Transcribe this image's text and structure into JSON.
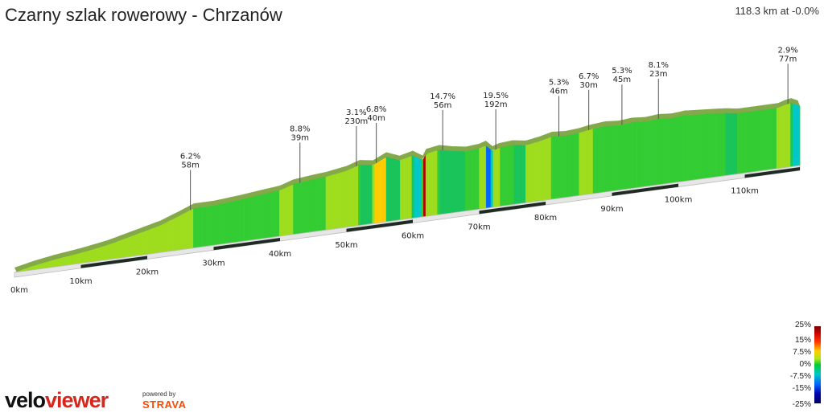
{
  "header": {
    "title": "Czarny szlak rowerowy - Chrzanów",
    "summary": "118.3 km at -0.0%"
  },
  "chart_data": {
    "type": "area",
    "title": "Czarny szlak rowerowy - Chrzanów",
    "total_distance_km": 118.3,
    "x_ticks": [
      "0km",
      "10km",
      "20km",
      "30km",
      "40km",
      "50km",
      "60km",
      "70km",
      "80km",
      "90km",
      "100km",
      "110km"
    ],
    "x_tick_values": [
      0,
      10,
      20,
      30,
      40,
      50,
      60,
      70,
      80,
      90,
      100,
      110
    ],
    "profile": [
      [
        0,
        0
      ],
      [
        3,
        4
      ],
      [
        6,
        7
      ],
      [
        10,
        10
      ],
      [
        14,
        14
      ],
      [
        18,
        20
      ],
      [
        22,
        26
      ],
      [
        25,
        33
      ],
      [
        27,
        38
      ],
      [
        30,
        38
      ],
      [
        34,
        40
      ],
      [
        37,
        42
      ],
      [
        40,
        44
      ],
      [
        42,
        48
      ],
      [
        45,
        50
      ],
      [
        47,
        51
      ],
      [
        50,
        54
      ],
      [
        52,
        58
      ],
      [
        54,
        56
      ],
      [
        56,
        62
      ],
      [
        58,
        57
      ],
      [
        60,
        60
      ],
      [
        61.5,
        54
      ],
      [
        62,
        60
      ],
      [
        64,
        62
      ],
      [
        66,
        59
      ],
      [
        68,
        57
      ],
      [
        70,
        58
      ],
      [
        71,
        60
      ],
      [
        72,
        54
      ],
      [
        73,
        56
      ],
      [
        75,
        57
      ],
      [
        77,
        55
      ],
      [
        79,
        57
      ],
      [
        81,
        60
      ],
      [
        83,
        59
      ],
      [
        85,
        60
      ],
      [
        87,
        62
      ],
      [
        89,
        63
      ],
      [
        91,
        62
      ],
      [
        93,
        63
      ],
      [
        95,
        62
      ],
      [
        97,
        63
      ],
      [
        99,
        62
      ],
      [
        101,
        63
      ],
      [
        103,
        62
      ],
      [
        105,
        61
      ],
      [
        107,
        60
      ],
      [
        109,
        58
      ],
      [
        111,
        58
      ],
      [
        113,
        58
      ],
      [
        115,
        58
      ],
      [
        116,
        60
      ],
      [
        117,
        61
      ],
      [
        118.3,
        57
      ]
    ],
    "gradient_markers": [
      {
        "km": 26.5,
        "grade": "6.2%",
        "length": "58m"
      },
      {
        "km": 43.0,
        "grade": "8.8%",
        "length": "39m"
      },
      {
        "km": 51.5,
        "grade": "3.1%",
        "length": "230m"
      },
      {
        "km": 54.5,
        "grade": "6.8%",
        "length": "40m"
      },
      {
        "km": 64.5,
        "grade": "14.7%",
        "length": "56m"
      },
      {
        "km": 72.5,
        "grade": "19.5%",
        "length": "192m"
      },
      {
        "km": 82.0,
        "grade": "5.3%",
        "length": "46m"
      },
      {
        "km": 86.5,
        "grade": "6.7%",
        "length": "30m"
      },
      {
        "km": 91.5,
        "grade": "5.3%",
        "length": "45m"
      },
      {
        "km": 97.0,
        "grade": "8.1%",
        "length": "23m"
      },
      {
        "km": 116.5,
        "grade": "2.9%",
        "length": "77m"
      }
    ],
    "legend": {
      "labels": [
        "25%",
        "15%",
        "7.5%",
        "0%",
        "-7.5%",
        "-15%",
        "-25%"
      ],
      "colors": [
        "#7a0000",
        "#ff3300",
        "#ffcc00",
        "#00cc33",
        "#00c8c8",
        "#0066ff",
        "#000060"
      ]
    }
  },
  "branding": {
    "logo_velo": "velo",
    "logo_viewer": "viewer",
    "powered_by": "powered by",
    "strava": "STRAVA"
  }
}
